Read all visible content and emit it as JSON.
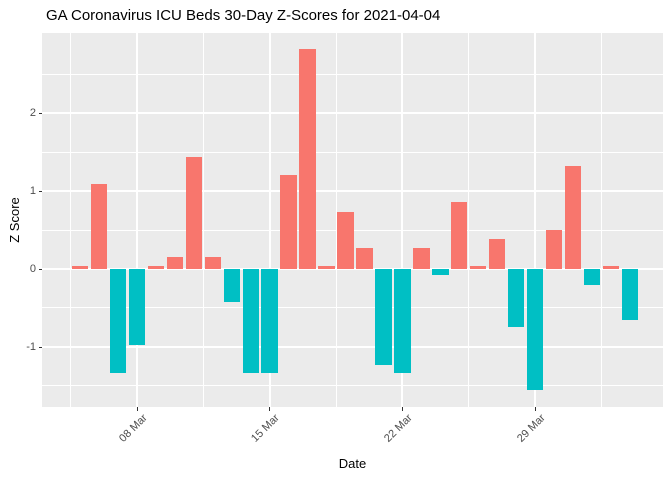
{
  "header": {
    "title": "GA Coronavirus ICU Beds 30-Day Z-Scores for 2021-04-04"
  },
  "chart_data": {
    "type": "bar",
    "title": "GA Coronavirus ICU Beds 30-Day Z-Scores for 2021-04-04",
    "xlabel": "Date",
    "ylabel": "Z Score",
    "categories": [
      "05 Mar",
      "06 Mar",
      "07 Mar",
      "08 Mar",
      "09 Mar",
      "10 Mar",
      "11 Mar",
      "12 Mar",
      "13 Mar",
      "14 Mar",
      "15 Mar",
      "16 Mar",
      "17 Mar",
      "18 Mar",
      "19 Mar",
      "20 Mar",
      "21 Mar",
      "22 Mar",
      "23 Mar",
      "24 Mar",
      "25 Mar",
      "26 Mar",
      "27 Mar",
      "28 Mar",
      "29 Mar",
      "30 Mar",
      "31 Mar",
      "01 Apr",
      "02 Apr",
      "03 Apr"
    ],
    "values": [
      0.04,
      1.09,
      -1.34,
      -0.98,
      0.04,
      0.15,
      1.44,
      0.16,
      -0.42,
      -1.34,
      -1.34,
      1.21,
      2.83,
      0.04,
      0.73,
      0.27,
      -1.23,
      -1.34,
      0.27,
      -0.08,
      0.86,
      0.04,
      0.39,
      -0.75,
      -1.56,
      0.5,
      1.33,
      -0.2,
      0.04,
      -0.66
    ],
    "x_ticks": {
      "labels": [
        "08 Mar",
        "15 Mar",
        "22 Mar",
        "29 Mar"
      ],
      "indices": [
        3,
        10,
        17,
        24
      ]
    },
    "y_ticks": [
      "-1",
      "0",
      "1",
      "2"
    ],
    "y_tick_values": [
      -1,
      0,
      1,
      2
    ],
    "y_minor_values": [
      -1.5,
      -0.5,
      0.5,
      1.5,
      2.5
    ],
    "ylim": [
      -1.77,
      3.03
    ],
    "grid": "on",
    "legend": "none",
    "colors": {
      "positive": "#F8766D",
      "negative": "#00BFC4",
      "panel_bg": "#EBEBEB",
      "gridline": "#FFFFFF",
      "tick_label": "#4D4D4D",
      "tick_mark": "#333333",
      "text": "#000000",
      "background": "#FFFFFF"
    }
  }
}
